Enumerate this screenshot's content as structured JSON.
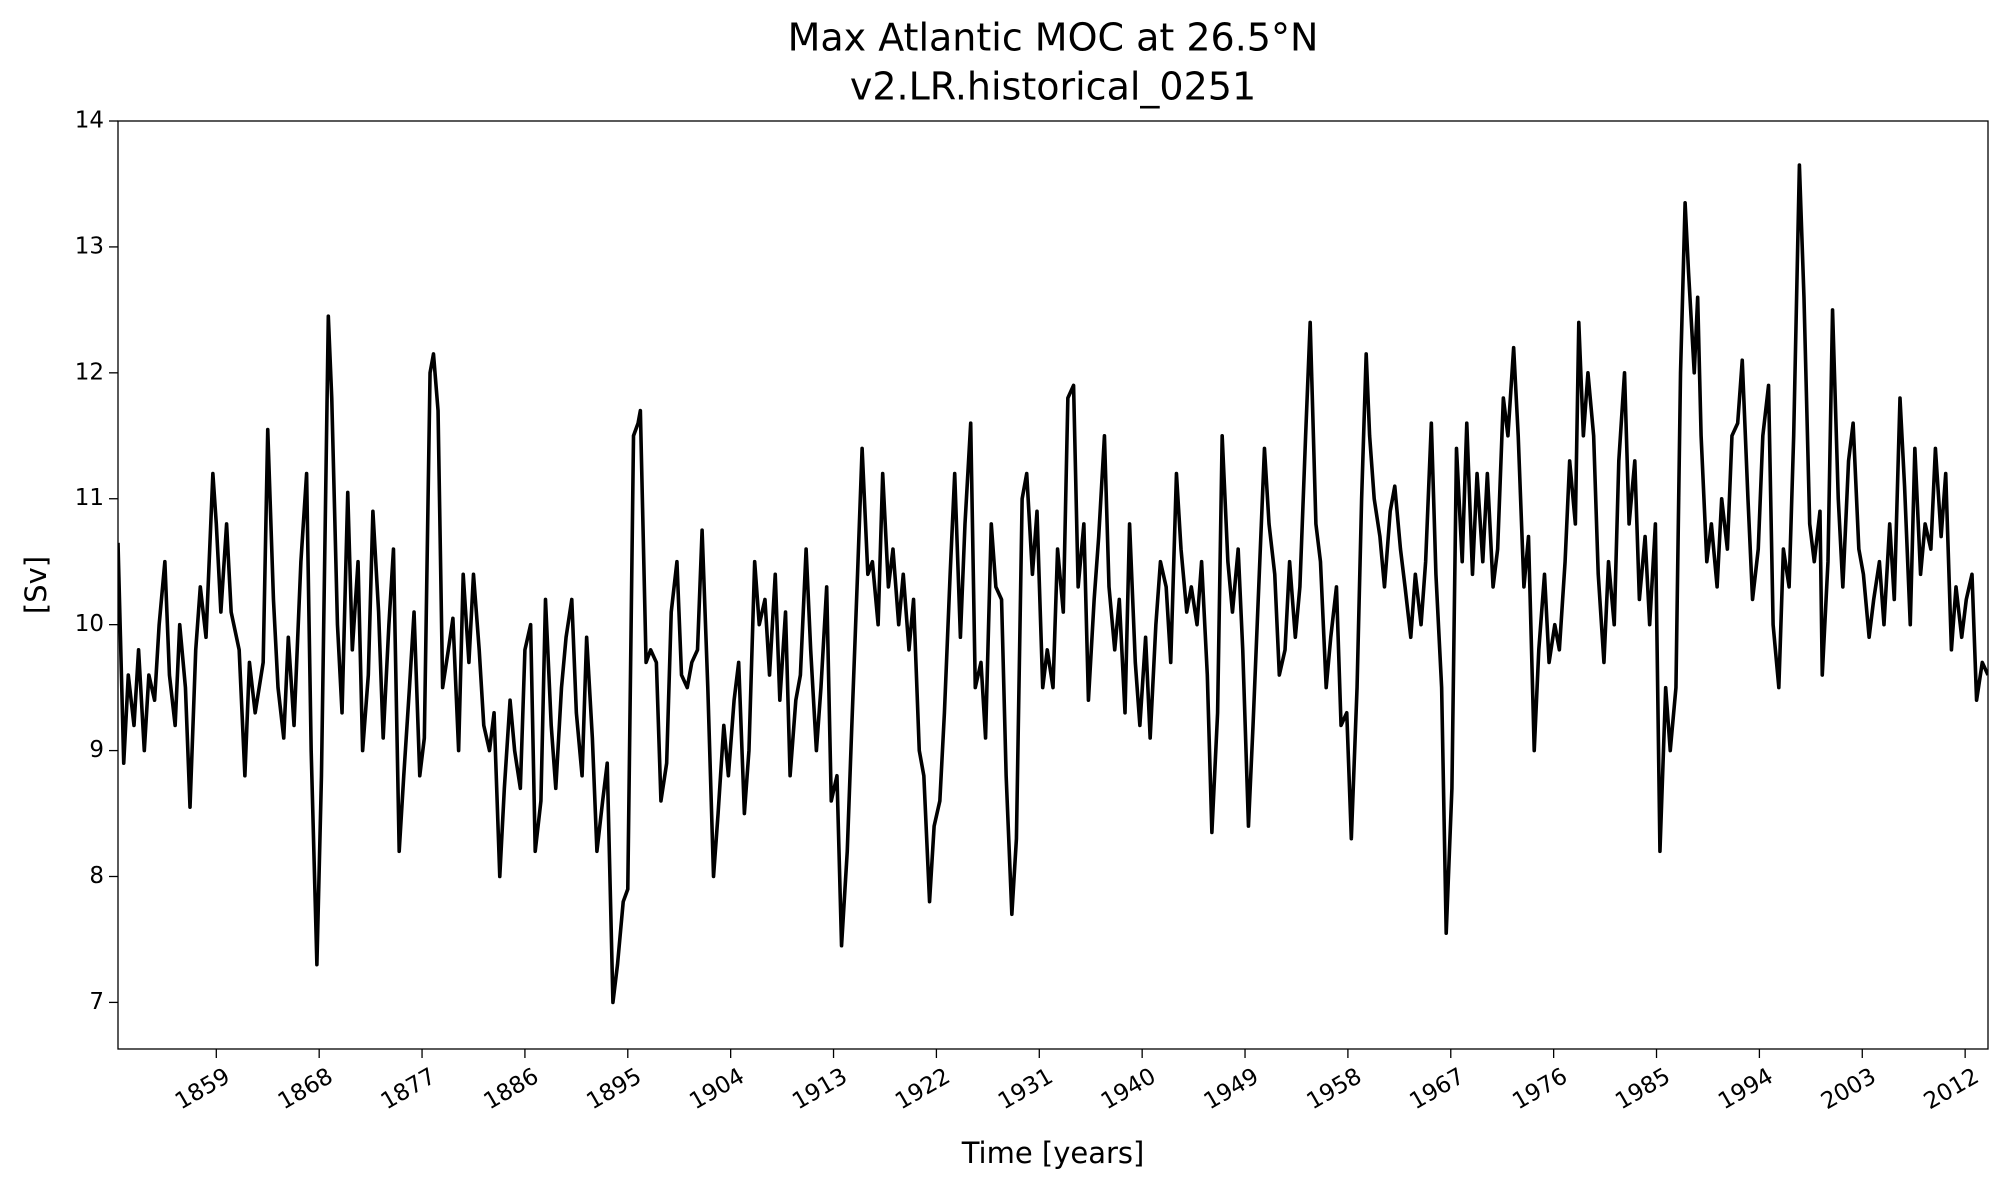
{
  "chart_data": {
    "type": "line",
    "title": "Max Atlantic MOC at 26.5°N",
    "subtitle": "v2.LR.historical_0251",
    "x_label": "Time [years]",
    "y_label": "[Sv]",
    "xlim": [
      1850.4,
      2014.0
    ],
    "ylim": [
      6.63,
      14
    ],
    "xticks": [
      1859,
      1868,
      1877,
      1886,
      1895,
      1904,
      1913,
      1922,
      1931,
      1940,
      1949,
      1958,
      1967,
      1976,
      1985,
      1994,
      2003,
      2012
    ],
    "yticks": [
      7,
      8,
      9,
      10,
      11,
      12,
      13,
      14
    ],
    "grid": false,
    "x": [
      1850.4,
      1850.9,
      1851.3,
      1851.8,
      1852.2,
      1852.7,
      1853.1,
      1853.6,
      1854.0,
      1854.5,
      1854.9,
      1855.4,
      1855.8,
      1856.3,
      1856.7,
      1857.2,
      1857.6,
      1858.1,
      1858.7,
      1859.0,
      1859.4,
      1859.9,
      1860.3,
      1861.0,
      1861.5,
      1861.9,
      1862.4,
      1863.1,
      1863.5,
      1864.0,
      1864.4,
      1864.9,
      1865.3,
      1865.8,
      1866.4,
      1866.9,
      1867.3,
      1867.8,
      1868.2,
      1868.8,
      1869.1,
      1869.6,
      1870.0,
      1870.5,
      1870.9,
      1871.4,
      1871.8,
      1872.3,
      1872.7,
      1873.2,
      1873.6,
      1874.1,
      1874.5,
      1875.0,
      1875.4,
      1875.9,
      1876.3,
      1876.8,
      1877.2,
      1877.7,
      1878.0,
      1878.4,
      1878.8,
      1879.3,
      1879.7,
      1880.2,
      1880.6,
      1881.1,
      1881.5,
      1882.0,
      1882.4,
      1882.9,
      1883.3,
      1883.8,
      1884.2,
      1884.7,
      1885.1,
      1885.6,
      1886.0,
      1886.5,
      1886.9,
      1887.4,
      1887.8,
      1888.3,
      1888.7,
      1889.2,
      1889.6,
      1890.1,
      1890.5,
      1891.0,
      1891.4,
      1891.9,
      1892.3,
      1892.8,
      1893.2,
      1893.7,
      1894.1,
      1894.6,
      1895.0,
      1895.5,
      1895.9,
      1896.1,
      1896.6,
      1897.0,
      1897.5,
      1897.9,
      1898.4,
      1898.8,
      1899.3,
      1899.7,
      1900.2,
      1900.6,
      1901.1,
      1901.5,
      1902.0,
      1902.5,
      1902.9,
      1903.4,
      1903.8,
      1904.3,
      1904.7,
      1905.2,
      1905.6,
      1906.1,
      1906.5,
      1907.0,
      1907.4,
      1907.9,
      1908.3,
      1908.8,
      1909.2,
      1909.7,
      1910.1,
      1910.6,
      1911.0,
      1911.5,
      1911.9,
      1912.4,
      1912.8,
      1913.3,
      1913.7,
      1914.2,
      1914.6,
      1915.1,
      1915.5,
      1916.0,
      1916.4,
      1916.9,
      1917.3,
      1917.8,
      1918.2,
      1918.7,
      1919.1,
      1919.6,
      1920.0,
      1920.5,
      1920.9,
      1921.4,
      1921.8,
      1922.3,
      1922.7,
      1923.2,
      1923.6,
      1924.1,
      1924.5,
      1925.0,
      1925.4,
      1925.9,
      1926.3,
      1926.8,
      1927.2,
      1927.7,
      1928.1,
      1928.6,
      1929.0,
      1929.5,
      1929.9,
      1930.4,
      1930.8,
      1931.3,
      1931.7,
      1932.2,
      1932.6,
      1933.1,
      1933.5,
      1934.0,
      1934.4,
      1934.9,
      1935.3,
      1935.8,
      1936.2,
      1936.7,
      1937.1,
      1937.6,
      1938.0,
      1938.5,
      1938.9,
      1939.4,
      1939.8,
      1940.3,
      1940.7,
      1941.2,
      1941.6,
      1942.1,
      1942.5,
      1943.0,
      1943.4,
      1943.9,
      1944.3,
      1944.8,
      1945.2,
      1945.7,
      1946.1,
      1946.6,
      1947.0,
      1947.5,
      1947.9,
      1948.4,
      1948.8,
      1949.3,
      1949.7,
      1950.2,
      1950.7,
      1951.1,
      1951.6,
      1952.0,
      1952.5,
      1952.9,
      1953.4,
      1953.8,
      1954.3,
      1954.7,
      1955.2,
      1955.6,
      1956.1,
      1956.5,
      1957.0,
      1957.4,
      1957.9,
      1958.3,
      1958.8,
      1959.2,
      1959.6,
      1959.9,
      1960.3,
      1960.8,
      1961.2,
      1961.7,
      1962.1,
      1962.6,
      1963.0,
      1963.5,
      1963.9,
      1964.4,
      1964.8,
      1965.3,
      1965.7,
      1966.2,
      1966.6,
      1967.1,
      1967.5,
      1968.0,
      1968.4,
      1968.9,
      1969.3,
      1969.8,
      1970.2,
      1970.7,
      1971.1,
      1971.6,
      1972.0,
      1972.5,
      1972.9,
      1973.4,
      1973.8,
      1974.3,
      1974.7,
      1975.2,
      1975.6,
      1976.1,
      1976.5,
      1977.0,
      1977.4,
      1977.9,
      1978.2,
      1978.6,
      1979.0,
      1979.5,
      1979.9,
      1980.4,
      1980.8,
      1981.3,
      1981.7,
      1982.2,
      1982.6,
      1983.1,
      1983.5,
      1984.0,
      1984.4,
      1984.9,
      1985.3,
      1985.8,
      1986.2,
      1986.7,
      1987.1,
      1987.5,
      1987.8,
      1988.3,
      1988.6,
      1988.9,
      1989.4,
      1989.8,
      1990.3,
      1990.7,
      1991.2,
      1991.6,
      1992.1,
      1992.5,
      1993.0,
      1993.4,
      1993.9,
      1994.3,
      1994.8,
      1995.2,
      1995.7,
      1996.1,
      1996.6,
      1997.0,
      1997.5,
      1997.9,
      1998.4,
      1998.8,
      1999.3,
      1999.5,
      2000.0,
      2000.4,
      2000.9,
      2001.3,
      2001.8,
      2002.2,
      2002.7,
      2003.1,
      2003.6,
      2004.0,
      2004.5,
      2004.9,
      2005.4,
      2005.8,
      2006.3,
      2006.7,
      2007.2,
      2007.6,
      2008.1,
      2008.5,
      2009.0,
      2009.4,
      2009.9,
      2010.3,
      2010.8,
      2011.2,
      2011.7,
      2012.1,
      2012.6,
      2013.0,
      2013.5,
      2014.0
    ],
    "series": [
      {
        "name": "MOC",
        "color": "#000000",
        "values": [
          10.65,
          8.9,
          9.6,
          9.2,
          9.8,
          9.0,
          9.6,
          9.4,
          10.0,
          10.5,
          9.6,
          9.2,
          10.0,
          9.5,
          8.55,
          9.8,
          10.3,
          9.9,
          11.2,
          10.8,
          10.1,
          10.8,
          10.1,
          9.8,
          8.8,
          9.7,
          9.3,
          9.7,
          11.55,
          10.2,
          9.5,
          9.1,
          9.9,
          9.2,
          10.5,
          11.2,
          9.0,
          7.3,
          8.8,
          12.45,
          11.8,
          10.0,
          9.3,
          11.05,
          9.8,
          10.5,
          9.0,
          9.6,
          10.9,
          10.1,
          9.1,
          10.0,
          10.6,
          8.2,
          8.8,
          9.5,
          10.1,
          8.8,
          9.1,
          12.0,
          12.15,
          11.7,
          9.5,
          9.8,
          10.05,
          9.0,
          10.4,
          9.7,
          10.4,
          9.8,
          9.2,
          9.0,
          9.3,
          8.0,
          8.7,
          9.4,
          9.0,
          8.7,
          9.8,
          10.0,
          8.2,
          8.6,
          10.2,
          9.2,
          8.7,
          9.5,
          9.9,
          10.2,
          9.3,
          8.8,
          9.9,
          9.1,
          8.2,
          8.6,
          8.9,
          7.0,
          7.3,
          7.8,
          7.9,
          11.5,
          11.6,
          11.7,
          9.7,
          9.8,
          9.7,
          8.6,
          8.9,
          10.1,
          10.5,
          9.6,
          9.5,
          9.7,
          9.8,
          10.75,
          9.5,
          8.0,
          8.5,
          9.2,
          8.8,
          9.4,
          9.7,
          8.5,
          9.0,
          10.5,
          10.0,
          10.2,
          9.6,
          10.4,
          9.4,
          10.1,
          8.8,
          9.4,
          9.6,
          10.6,
          9.8,
          9.0,
          9.5,
          10.3,
          8.6,
          8.8,
          7.45,
          8.2,
          9.2,
          10.4,
          11.4,
          10.4,
          10.5,
          10.0,
          11.2,
          10.3,
          10.6,
          10.0,
          10.4,
          9.8,
          10.2,
          9.0,
          8.8,
          7.8,
          8.4,
          8.6,
          9.3,
          10.4,
          11.2,
          9.9,
          10.8,
          11.6,
          9.5,
          9.7,
          9.1,
          10.8,
          10.3,
          10.2,
          8.8,
          7.7,
          8.3,
          11.0,
          11.2,
          10.4,
          10.9,
          9.5,
          9.8,
          9.5,
          10.6,
          10.1,
          11.8,
          11.9,
          10.3,
          10.8,
          9.4,
          10.2,
          10.7,
          11.5,
          10.3,
          9.8,
          10.2,
          9.3,
          10.8,
          9.7,
          9.2,
          9.9,
          9.1,
          10.0,
          10.5,
          10.3,
          9.7,
          11.2,
          10.6,
          10.1,
          10.3,
          10.0,
          10.5,
          9.6,
          8.35,
          9.3,
          11.5,
          10.5,
          10.1,
          10.6,
          9.8,
          8.4,
          9.2,
          10.3,
          11.4,
          10.8,
          10.4,
          9.6,
          9.8,
          10.5,
          9.9,
          10.3,
          11.5,
          12.4,
          10.8,
          10.5,
          9.5,
          9.9,
          10.3,
          9.2,
          9.3,
          8.3,
          9.5,
          11.0,
          12.15,
          11.5,
          11.0,
          10.7,
          10.3,
          10.9,
          11.1,
          10.6,
          10.3,
          9.9,
          10.4,
          10.0,
          10.5,
          11.6,
          10.4,
          9.5,
          7.55,
          8.7,
          11.4,
          10.5,
          11.6,
          10.4,
          11.2,
          10.5,
          11.2,
          10.3,
          10.6,
          11.8,
          11.5,
          12.2,
          11.5,
          10.3,
          10.7,
          9.0,
          9.8,
          10.4,
          9.7,
          10.0,
          9.8,
          10.5,
          11.3,
          10.8,
          12.4,
          11.5,
          12.0,
          11.5,
          10.4,
          9.7,
          10.5,
          10.0,
          11.3,
          12.0,
          10.8,
          11.3,
          10.2,
          10.7,
          10.0,
          10.8,
          8.2,
          9.5,
          9.0,
          9.5,
          12.0,
          13.35,
          12.8,
          12.0,
          12.6,
          11.5,
          10.5,
          10.8,
          10.3,
          11.0,
          10.6,
          11.5,
          11.6,
          12.1,
          11.0,
          10.2,
          10.6,
          11.5,
          11.9,
          10.0,
          9.5,
          10.6,
          10.3,
          11.5,
          13.65,
          12.6,
          10.8,
          10.5,
          10.9,
          9.6,
          10.5,
          12.5,
          11.0,
          10.3,
          11.3,
          11.6,
          10.6,
          10.4,
          9.9,
          10.2,
          10.5,
          10.0,
          10.8,
          10.2,
          11.8,
          11.1,
          10.0,
          11.4,
          10.4,
          10.8,
          10.6,
          11.4,
          10.7,
          11.2,
          9.8,
          10.3,
          9.9,
          10.2,
          10.4,
          9.4,
          9.7,
          9.6
        ]
      }
    ]
  }
}
